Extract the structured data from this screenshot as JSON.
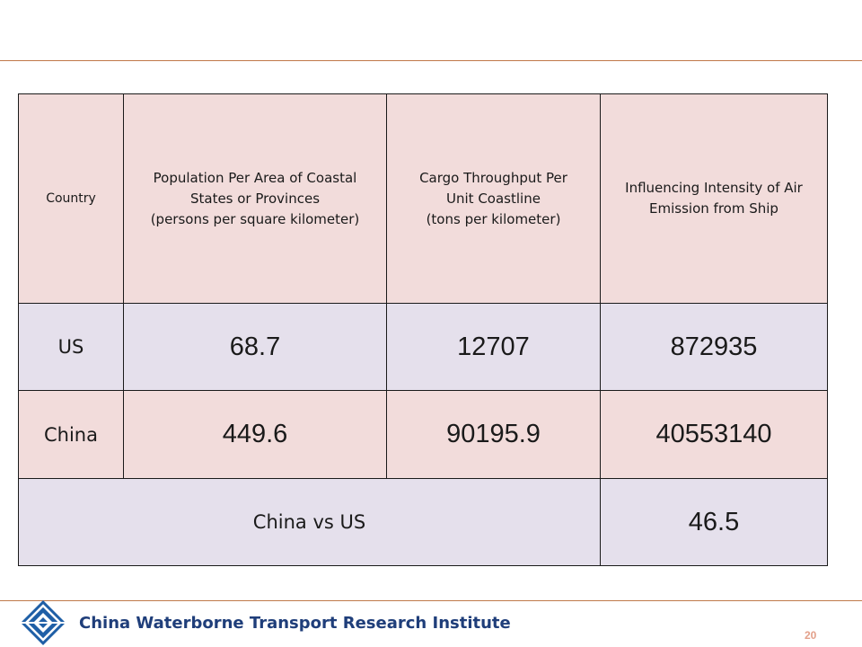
{
  "table": {
    "headers": [
      [
        "Country"
      ],
      [
        "Population Per Area of Coastal",
        "States or Provinces",
        "(persons per square kilometer)"
      ],
      [
        "Cargo Throughput Per",
        "Unit Coastline",
        "(tons per kilometer)"
      ],
      [
        "Influencing Intensity of Air",
        "Emission from Ship"
      ]
    ],
    "rows": [
      {
        "country": "US",
        "population": "68.7",
        "cargo": "12707",
        "intensity": "872935"
      },
      {
        "country": "China",
        "population": "449.6",
        "cargo": "90195.9",
        "intensity": "40553140"
      }
    ],
    "comparison": {
      "label": "China vs US",
      "value": "46.5"
    }
  },
  "footer": {
    "organization": "China Waterborne Transport Research Institute",
    "page_number": "20"
  },
  "colors": {
    "header_fill": "#f2dcdb",
    "alt_row_fill": "#e5e0ec",
    "rule": "#c0794a",
    "logo_blue": "#1f5fa6",
    "footer_text": "#1f3e7a",
    "page_number": "#e3a08a"
  }
}
